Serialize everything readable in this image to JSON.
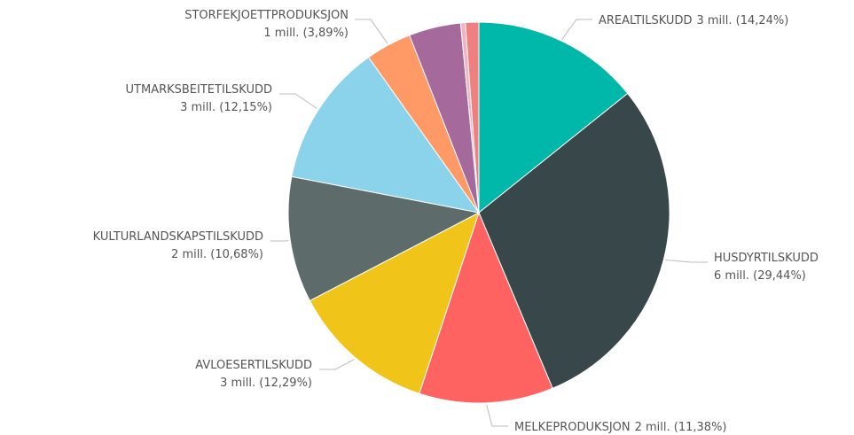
{
  "chart_data": {
    "type": "pie",
    "categories": [
      "AREALTILSKUDD",
      "HUSDYRTILSKUDD",
      "MELKEPRODUKSJON",
      "AVLOESERTILSKUDD",
      "KULTURLANDSKAPSTILSKUDD",
      "UTMARKSBEITETILSKUDD",
      "STORFEKJOETTPRODUKSJON",
      null,
      null,
      null
    ],
    "values": [
      14.24,
      29.44,
      11.38,
      12.29,
      10.68,
      12.15,
      3.89,
      4.4,
      0.4,
      1.13
    ],
    "value_labels": [
      "3 mill. (14,24%)",
      "6 mill. (29,44%)",
      "2 mill. (11,38%)",
      "3 mill. (12,29%)",
      "2 mill. (10,68%)",
      "3 mill. (12,15%)",
      "1 mill. (3,89%)",
      null,
      null,
      null
    ],
    "colors": [
      "#00b8a9",
      "#37474a",
      "#fe6361",
      "#f0c419",
      "#5d6b6b",
      "#8bd3ea",
      "#ff9966",
      "#a6699c",
      "#f5b3c0",
      "#f07f7f"
    ]
  }
}
